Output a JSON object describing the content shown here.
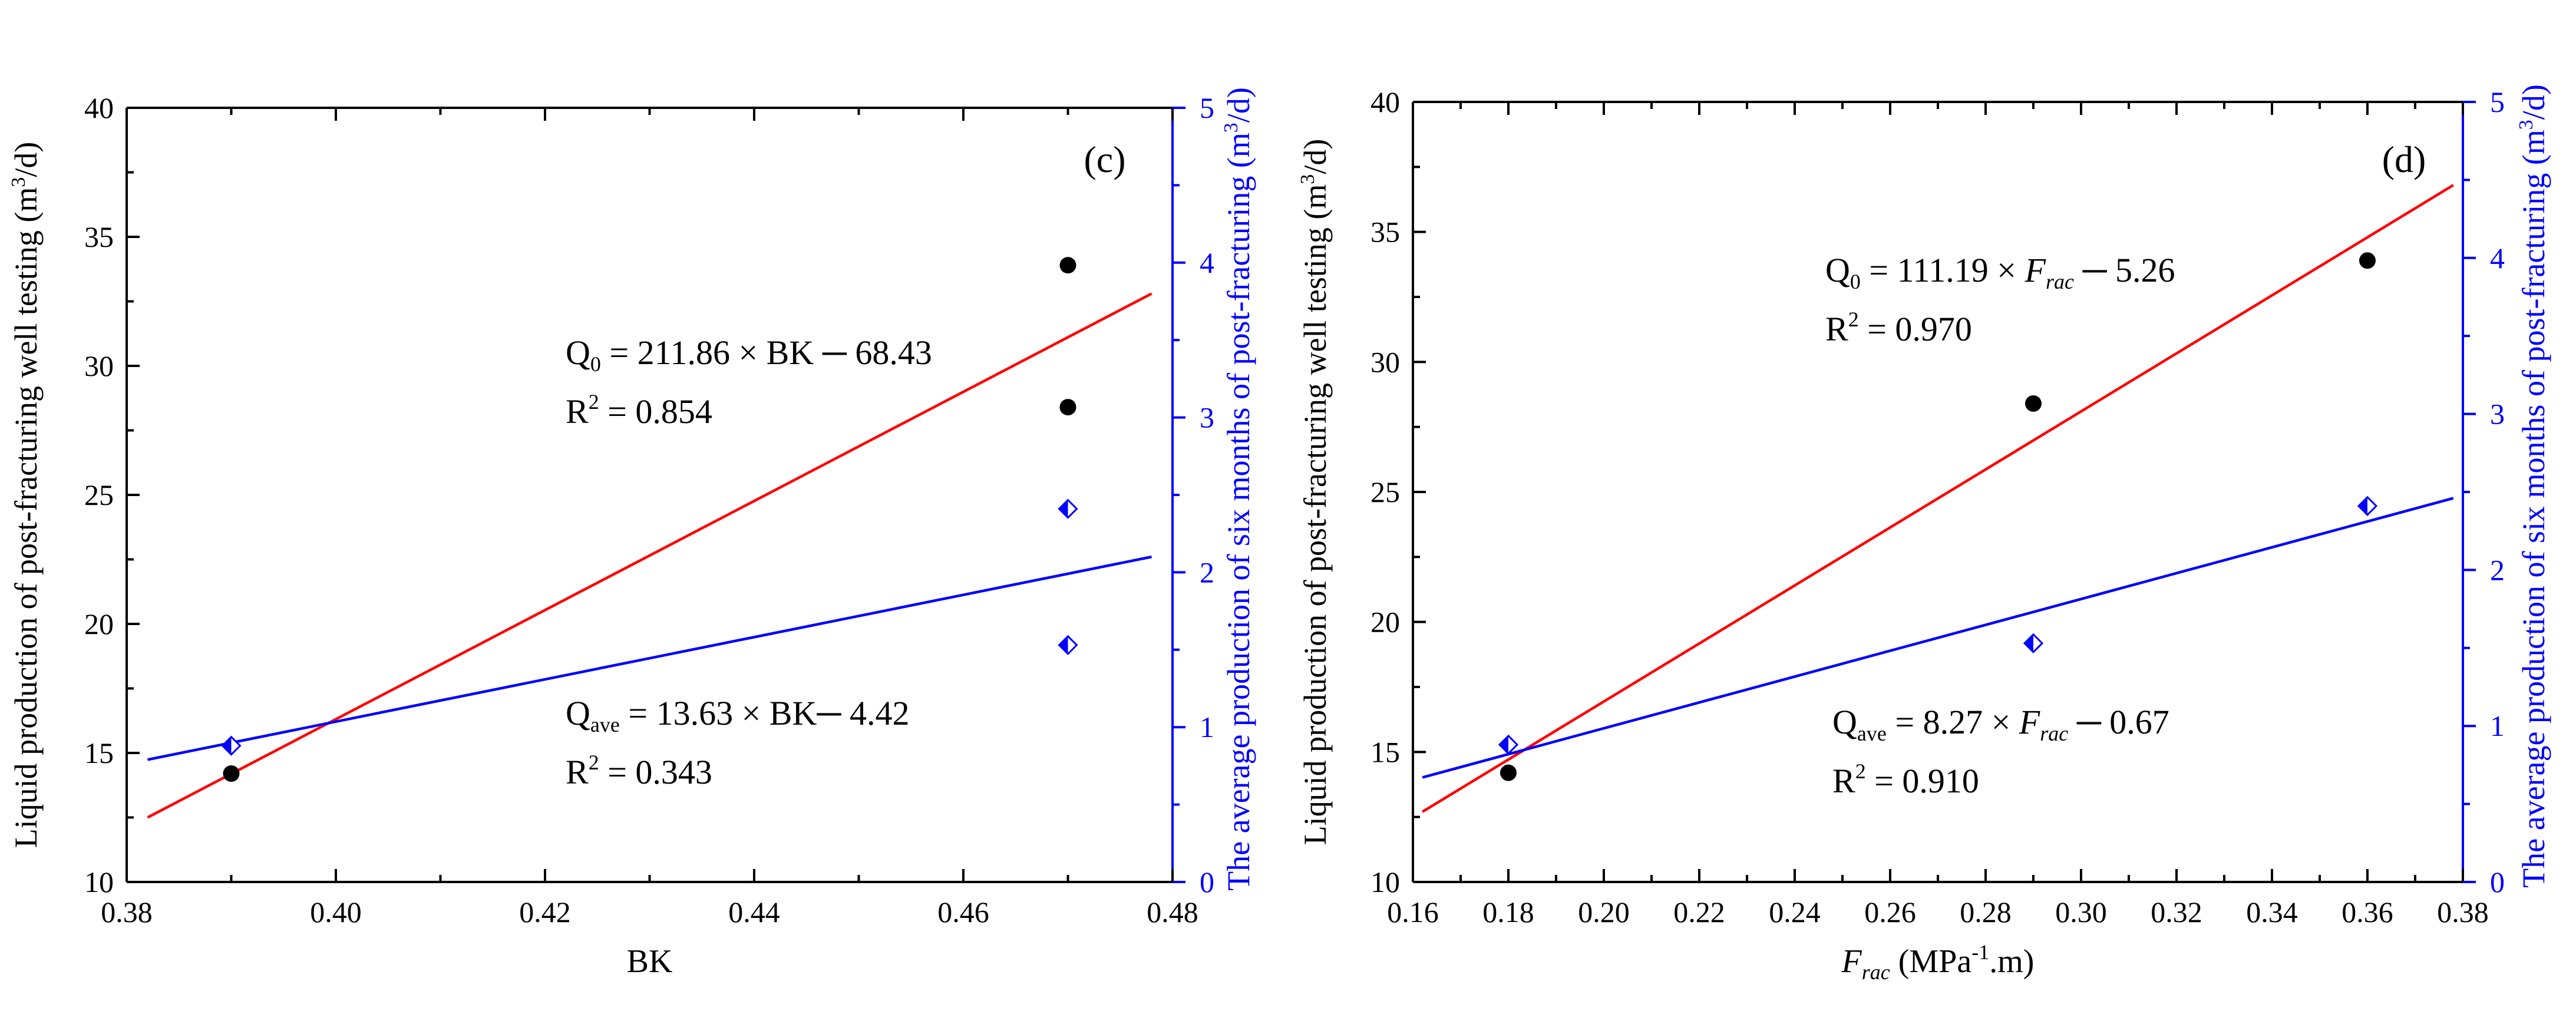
{
  "chart_data": [
    {
      "type": "scatter",
      "panel_label": "(c)",
      "xlabel": "BK",
      "ylabel": "Liquid production of post-fracturing well testing (m³/d)",
      "y2label": "The average production of six months of post-fracturing (m³/d)",
      "xlim": [
        0.38,
        0.48
      ],
      "ylim": [
        10,
        40
      ],
      "y2lim": [
        0,
        5
      ],
      "xticks": [
        0.38,
        0.4,
        0.42,
        0.44,
        0.46,
        0.48
      ],
      "xtick_labels": [
        "0.38",
        "0.40",
        "0.42",
        "0.44",
        "0.46",
        "0.48"
      ],
      "yticks": [
        10,
        15,
        20,
        25,
        30,
        35,
        40
      ],
      "ytick_labels": [
        "10",
        "15",
        "20",
        "25",
        "30",
        "35",
        "40"
      ],
      "y2ticks": [
        0,
        1,
        2,
        3,
        4,
        5
      ],
      "y2tick_labels": [
        "0",
        "1",
        "2",
        "3",
        "4",
        "5"
      ],
      "series": [
        {
          "name": "Q0",
          "axis": "left",
          "marker": "circle",
          "color": "#000000",
          "x": [
            0.39,
            0.47,
            0.47
          ],
          "y": [
            14.2,
            28.4,
            33.9
          ]
        },
        {
          "name": "Qave",
          "axis": "right",
          "marker": "diamond-half",
          "color": "#0000ff",
          "x": [
            0.39,
            0.47,
            0.47
          ],
          "y": [
            0.88,
            1.53,
            2.41
          ]
        }
      ],
      "fit_lines": [
        {
          "name": "Q0 fit",
          "axis": "left",
          "color": "#ff0000",
          "x": [
            0.382,
            0.478
          ],
          "y": [
            12.5,
            32.8
          ]
        },
        {
          "name": "Qave fit",
          "axis": "right",
          "color": "#0000ff",
          "x": [
            0.382,
            0.478
          ],
          "y": [
            0.79,
            2.1
          ]
        }
      ],
      "annotations": {
        "q0": {
          "lhs": "Q",
          "sub": "0",
          "rhs": " = 211.86 × BK ─ 68.43",
          "r2": " = 0.854"
        },
        "qave": {
          "lhs": "Q",
          "sub": "ave",
          "rhs": " = 13.63 × BK─ 4.42",
          "r2": " = 0.343"
        }
      }
    },
    {
      "type": "scatter",
      "panel_label": "(d)",
      "xlabel": "Frac (MPa⁻¹.m)",
      "ylabel": "Liquid production of post-fracturing well testing (m³/d)",
      "y2label": "The average production of six months of post-fracturing (m³/d)",
      "xlim": [
        0.16,
        0.38
      ],
      "ylim": [
        10,
        40
      ],
      "y2lim": [
        0,
        5
      ],
      "xticks": [
        0.16,
        0.18,
        0.2,
        0.22,
        0.24,
        0.26,
        0.28,
        0.3,
        0.32,
        0.34,
        0.36,
        0.38
      ],
      "xtick_labels": [
        "0.16",
        "0.18",
        "0.20",
        "0.22",
        "0.24",
        "0.26",
        "0.28",
        "0.30",
        "0.32",
        "0.34",
        "0.36",
        "0.38"
      ],
      "yticks": [
        10,
        15,
        20,
        25,
        30,
        35,
        40
      ],
      "ytick_labels": [
        "10",
        "15",
        "20",
        "25",
        "30",
        "35",
        "40"
      ],
      "y2ticks": [
        0,
        1,
        2,
        3,
        4,
        5
      ],
      "y2tick_labels": [
        "0",
        "1",
        "2",
        "3",
        "4",
        "5"
      ],
      "series": [
        {
          "name": "Q0",
          "axis": "left",
          "marker": "circle",
          "color": "#000000",
          "x": [
            0.18,
            0.29,
            0.36
          ],
          "y": [
            14.2,
            28.4,
            33.9
          ]
        },
        {
          "name": "Qave",
          "axis": "right",
          "marker": "diamond-half",
          "color": "#0000ff",
          "x": [
            0.18,
            0.29,
            0.36
          ],
          "y": [
            0.88,
            1.53,
            2.41
          ]
        }
      ],
      "fit_lines": [
        {
          "name": "Q0 fit",
          "axis": "left",
          "color": "#ff0000",
          "x": [
            0.162,
            0.378
          ],
          "y": [
            12.7,
            36.8
          ]
        },
        {
          "name": "Qave fit",
          "axis": "right",
          "color": "#0000ff",
          "x": [
            0.162,
            0.378
          ],
          "y": [
            0.67,
            2.46
          ]
        }
      ],
      "annotations": {
        "q0": {
          "lhs": "Q",
          "sub": "0",
          "rhs_a": " = 111.19 × ",
          "var": "F",
          "varsub": "rac",
          "rhs_b": " ─ 5.26",
          "r2": " = 0.970"
        },
        "qave": {
          "lhs": "Q",
          "sub": "ave",
          "rhs_a": " = 8.27 × ",
          "var": "F",
          "varsub": "rac",
          "rhs_b": " ─ 0.67",
          "r2": " = 0.910"
        }
      }
    }
  ]
}
